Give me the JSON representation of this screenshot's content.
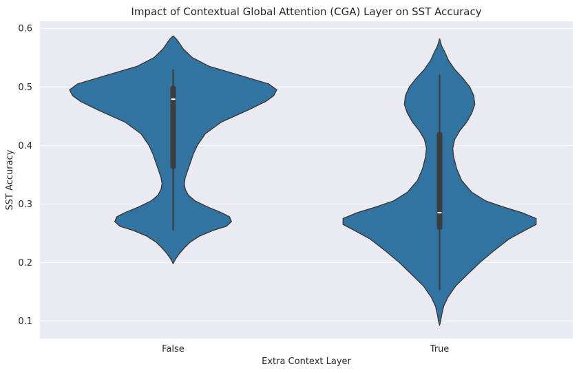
{
  "chart_data": {
    "type": "violin",
    "title": "Impact of Contextual Global Attention (CGA) Layer on SST Accuracy",
    "xlabel": "Extra Context Layer",
    "ylabel": "SST Accuracy",
    "categories": [
      "False",
      "True"
    ],
    "ylim": [
      0.07,
      0.612
    ],
    "yticks": [
      0.1,
      0.2,
      0.3,
      0.4,
      0.5,
      0.6
    ],
    "ytick_labels": [
      "0.1",
      "0.2",
      "0.3",
      "0.4",
      "0.5",
      "0.6"
    ],
    "grid": true,
    "colors": {
      "fill": "#3274a1",
      "outline": "#3d3d3d",
      "box": "#3d3d3d",
      "median": "#ffffff",
      "plot_bg": "#eaeaf2",
      "grid": "#ffffff"
    },
    "violins": [
      {
        "category": "False",
        "density": [
          [
            0.198,
            0.0
          ],
          [
            0.205,
            0.02
          ],
          [
            0.215,
            0.06
          ],
          [
            0.225,
            0.11
          ],
          [
            0.235,
            0.17
          ],
          [
            0.245,
            0.26
          ],
          [
            0.255,
            0.4
          ],
          [
            0.262,
            0.53
          ],
          [
            0.27,
            0.58
          ],
          [
            0.278,
            0.56
          ],
          [
            0.285,
            0.48
          ],
          [
            0.295,
            0.34
          ],
          [
            0.305,
            0.22
          ],
          [
            0.315,
            0.15
          ],
          [
            0.325,
            0.12
          ],
          [
            0.335,
            0.11
          ],
          [
            0.345,
            0.12
          ],
          [
            0.355,
            0.14
          ],
          [
            0.37,
            0.17
          ],
          [
            0.385,
            0.2
          ],
          [
            0.4,
            0.24
          ],
          [
            0.42,
            0.32
          ],
          [
            0.44,
            0.48
          ],
          [
            0.46,
            0.74
          ],
          [
            0.475,
            0.92
          ],
          [
            0.485,
            1.0
          ],
          [
            0.495,
            1.03
          ],
          [
            0.505,
            0.95
          ],
          [
            0.52,
            0.66
          ],
          [
            0.535,
            0.36
          ],
          [
            0.55,
            0.19
          ],
          [
            0.565,
            0.1
          ],
          [
            0.575,
            0.06
          ],
          [
            0.582,
            0.03
          ],
          [
            0.587,
            0.0
          ]
        ],
        "whisker": [
          0.255,
          0.53
        ],
        "q1": 0.36,
        "q3": 0.502,
        "median": 0.479
      },
      {
        "category": "True",
        "density": [
          [
            0.093,
            0.0
          ],
          [
            0.1,
            0.01
          ],
          [
            0.11,
            0.02
          ],
          [
            0.125,
            0.04
          ],
          [
            0.14,
            0.08
          ],
          [
            0.16,
            0.16
          ],
          [
            0.18,
            0.28
          ],
          [
            0.2,
            0.4
          ],
          [
            0.22,
            0.54
          ],
          [
            0.24,
            0.69
          ],
          [
            0.255,
            0.85
          ],
          [
            0.265,
            0.96
          ],
          [
            0.275,
            0.96
          ],
          [
            0.285,
            0.82
          ],
          [
            0.295,
            0.63
          ],
          [
            0.305,
            0.46
          ],
          [
            0.32,
            0.32
          ],
          [
            0.34,
            0.22
          ],
          [
            0.36,
            0.17
          ],
          [
            0.38,
            0.14
          ],
          [
            0.395,
            0.13
          ],
          [
            0.41,
            0.15
          ],
          [
            0.425,
            0.2
          ],
          [
            0.44,
            0.27
          ],
          [
            0.455,
            0.32
          ],
          [
            0.47,
            0.35
          ],
          [
            0.485,
            0.34
          ],
          [
            0.5,
            0.3
          ],
          [
            0.515,
            0.23
          ],
          [
            0.53,
            0.15
          ],
          [
            0.545,
            0.09
          ],
          [
            0.56,
            0.05
          ],
          [
            0.57,
            0.02
          ],
          [
            0.582,
            0.0
          ]
        ],
        "whisker": [
          0.153,
          0.521
        ],
        "q1": 0.256,
        "q3": 0.423,
        "median": 0.285
      }
    ]
  }
}
